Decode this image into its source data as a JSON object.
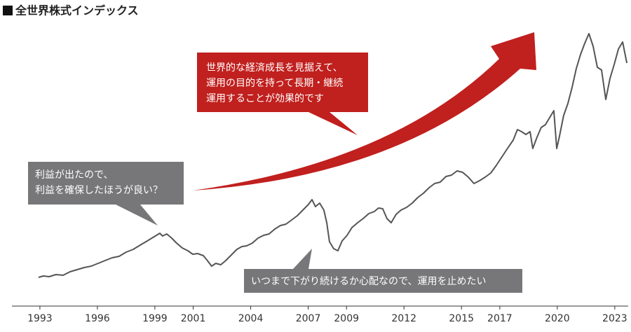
{
  "chart_data": {
    "type": "line",
    "title": "全世界株式インデックス",
    "x": [
      1992.93,
      1993.18,
      1993.48,
      1993.84,
      1994.21,
      1994.57,
      1994.94,
      1995.31,
      1995.67,
      1996.04,
      1996.4,
      1996.77,
      1997.13,
      1997.5,
      1997.87,
      1998.23,
      1998.6,
      1998.96,
      1999.26,
      1999.4,
      1999.62,
      1999.88,
      2000.13,
      2000.43,
      2000.72,
      2000.98,
      2001.23,
      2001.53,
      2001.74,
      2001.96,
      2002.18,
      2002.44,
      2002.7,
      2002.99,
      2003.28,
      2003.54,
      2003.79,
      2004.09,
      2004.38,
      2004.67,
      2004.96,
      2005.26,
      2005.55,
      2005.84,
      2006.14,
      2006.43,
      2006.72,
      2007.01,
      2007.2,
      2007.38,
      2007.6,
      2007.82,
      2007.97,
      2008.11,
      2008.33,
      2008.55,
      2008.77,
      2009.03,
      2009.28,
      2009.58,
      2009.87,
      2010.16,
      2010.45,
      2010.67,
      2010.89,
      2011.11,
      2011.33,
      2011.59,
      2011.84,
      2012.14,
      2012.43,
      2012.72,
      2013.01,
      2013.31,
      2013.6,
      2013.89,
      2014.19,
      2014.48,
      2014.77,
      2015.06,
      2015.36,
      2015.65,
      2015.94,
      2016.23,
      2016.53,
      2016.82,
      2017.11,
      2017.4,
      2017.7,
      2017.92,
      2018.14,
      2018.36,
      2018.58,
      2018.72,
      2018.94,
      2019.16,
      2019.38,
      2019.6,
      2019.82,
      2019.97,
      2020.11,
      2020.33,
      2020.55,
      2020.77,
      2020.99,
      2021.21,
      2021.43,
      2021.65,
      2021.87,
      2022.09,
      2022.31,
      2022.53,
      2022.75,
      2022.97,
      2023.19,
      2023.41,
      2023.63
    ],
    "series": [
      {
        "color": "#555555",
        "values": [
          10.25,
          10.75,
          10.5,
          11.25,
          11,
          12.25,
          13,
          13.75,
          14.25,
          15.25,
          16.25,
          17.25,
          17.75,
          19.25,
          20.25,
          21.75,
          23.25,
          24.75,
          26,
          25,
          25.75,
          24.25,
          22.5,
          20.75,
          19.75,
          18.5,
          18.75,
          18,
          16.25,
          14.25,
          15.25,
          14.75,
          16.25,
          18.25,
          20.25,
          21.25,
          21.5,
          22.5,
          24.25,
          25.25,
          25.75,
          27.5,
          28.75,
          29.25,
          30.75,
          32.25,
          34.25,
          36.25,
          38,
          35.5,
          36.75,
          34.25,
          29.75,
          23,
          20.5,
          19.75,
          23.25,
          25.25,
          28,
          29.75,
          31.25,
          33,
          33.75,
          35,
          34.75,
          31.25,
          29.75,
          32.75,
          34.25,
          35.25,
          36.75,
          38.75,
          40.25,
          42.25,
          43.75,
          44.25,
          46.25,
          46.75,
          48.25,
          47.75,
          46,
          43.75,
          44.75,
          46,
          47.5,
          50.25,
          53.25,
          56.25,
          59.25,
          63,
          62.25,
          61.25,
          62.25,
          56.25,
          60.25,
          63.75,
          64.75,
          67.25,
          69.75,
          56.25,
          60.5,
          68,
          72.25,
          78,
          84.75,
          89.75,
          93.75,
          97.25,
          92.75,
          85.25,
          84.25,
          73.75,
          81.25,
          86.25,
          91.75,
          94.25,
          86.75
        ]
      }
    ],
    "xlim": [
      1991.54,
      2023.7
    ],
    "ylim": [
      0,
      100
    ],
    "xticks": [
      1993,
      1996,
      1999,
      2001,
      2004,
      2007,
      2009,
      2012,
      2015,
      2017,
      2020,
      2023
    ],
    "annotations": [
      {
        "lines": [
          "世界的な経済成長を見据えて、",
          "運用の目的を持って長期・継続",
          "運用することが効果的です"
        ]
      },
      {
        "lines": [
          "利益が出たので、",
          "利益を確保したほうが良い？"
        ]
      },
      {
        "lines": [
          "いつまで下がり続けるか心配なので、運用を止めたい"
        ]
      }
    ]
  }
}
